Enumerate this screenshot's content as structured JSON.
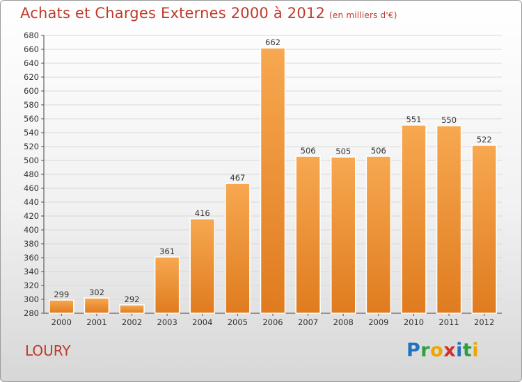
{
  "header": {
    "title": "Achats et Charges Externes 2000 à 2012",
    "subtitle": "(en milliers d'€)"
  },
  "footer": {
    "commune": "LOURY",
    "logo_text": "Proxiti",
    "logo_letters": [
      {
        "ch": "P",
        "color": "#1e73be"
      },
      {
        "ch": "r",
        "color": "#2e9e3e"
      },
      {
        "ch": "o",
        "color": "#f0a400"
      },
      {
        "ch": "x",
        "color": "#d32f2f"
      },
      {
        "ch": "i",
        "color": "#1e73be"
      },
      {
        "ch": "t",
        "color": "#2e9e3e"
      },
      {
        "ch": "i",
        "color": "#f0a400"
      }
    ]
  },
  "colors": {
    "title": "#c0392b",
    "bar_top": "#f7a850",
    "bar_bottom": "#e07b1f",
    "axis_text": "#333333",
    "grid": "#d8d8d8"
  },
  "chart_data": {
    "type": "bar",
    "categories": [
      "2000",
      "2001",
      "2002",
      "2003",
      "2004",
      "2005",
      "2006",
      "2007",
      "2008",
      "2009",
      "2010",
      "2011",
      "2012"
    ],
    "values": [
      299,
      302,
      292,
      361,
      416,
      467,
      662,
      506,
      505,
      506,
      551,
      550,
      522
    ],
    "ylim": [
      280,
      680
    ],
    "ytick_step": 20,
    "grid": true,
    "legend": "none"
  }
}
